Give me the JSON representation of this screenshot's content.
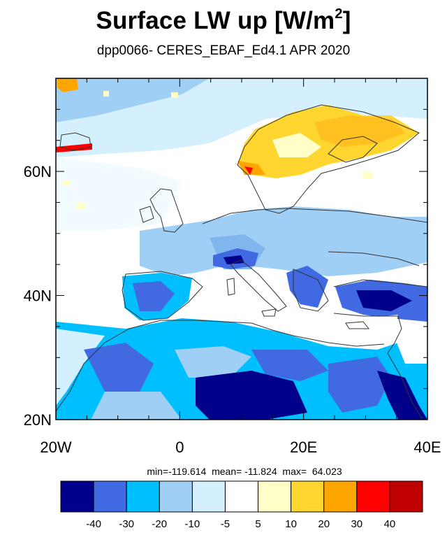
{
  "title": {
    "main": "Surface LW up [W/m",
    "sup": "2",
    "close": "]"
  },
  "subtitle": "dpp0066- CERES_EBAF_Ed4.1 APR 2020",
  "stats": {
    "min": "-119.614",
    "mean": "-11.824",
    "max": "64.023"
  },
  "stats_labels": {
    "min": "min=",
    "mean": "mean=",
    "max": "max="
  },
  "map": {
    "lon_range": [
      -20,
      40
    ],
    "lat_range": [
      20,
      75
    ],
    "lon_ticks": [
      {
        "value": -20,
        "label": "20W"
      },
      {
        "value": 0,
        "label": "0"
      },
      {
        "value": 20,
        "label": "20E"
      },
      {
        "value": 40,
        "label": "40E"
      }
    ],
    "lat_ticks": [
      {
        "value": 20,
        "label": "20N"
      },
      {
        "value": 40,
        "label": "40N"
      },
      {
        "value": 60,
        "label": "60N"
      }
    ]
  },
  "colorbar": {
    "colors": [
      "#00008b",
      "#4169e1",
      "#00bfff",
      "#a0cff5",
      "#d4f0ff",
      "#ffffff",
      "#ffffc8",
      "#ffd530",
      "#ffa500",
      "#ff0000",
      "#c00000"
    ],
    "labels": [
      "-40",
      "-30",
      "-20",
      "-10",
      "-5",
      "5",
      "10",
      "20",
      "30",
      "40"
    ]
  }
}
